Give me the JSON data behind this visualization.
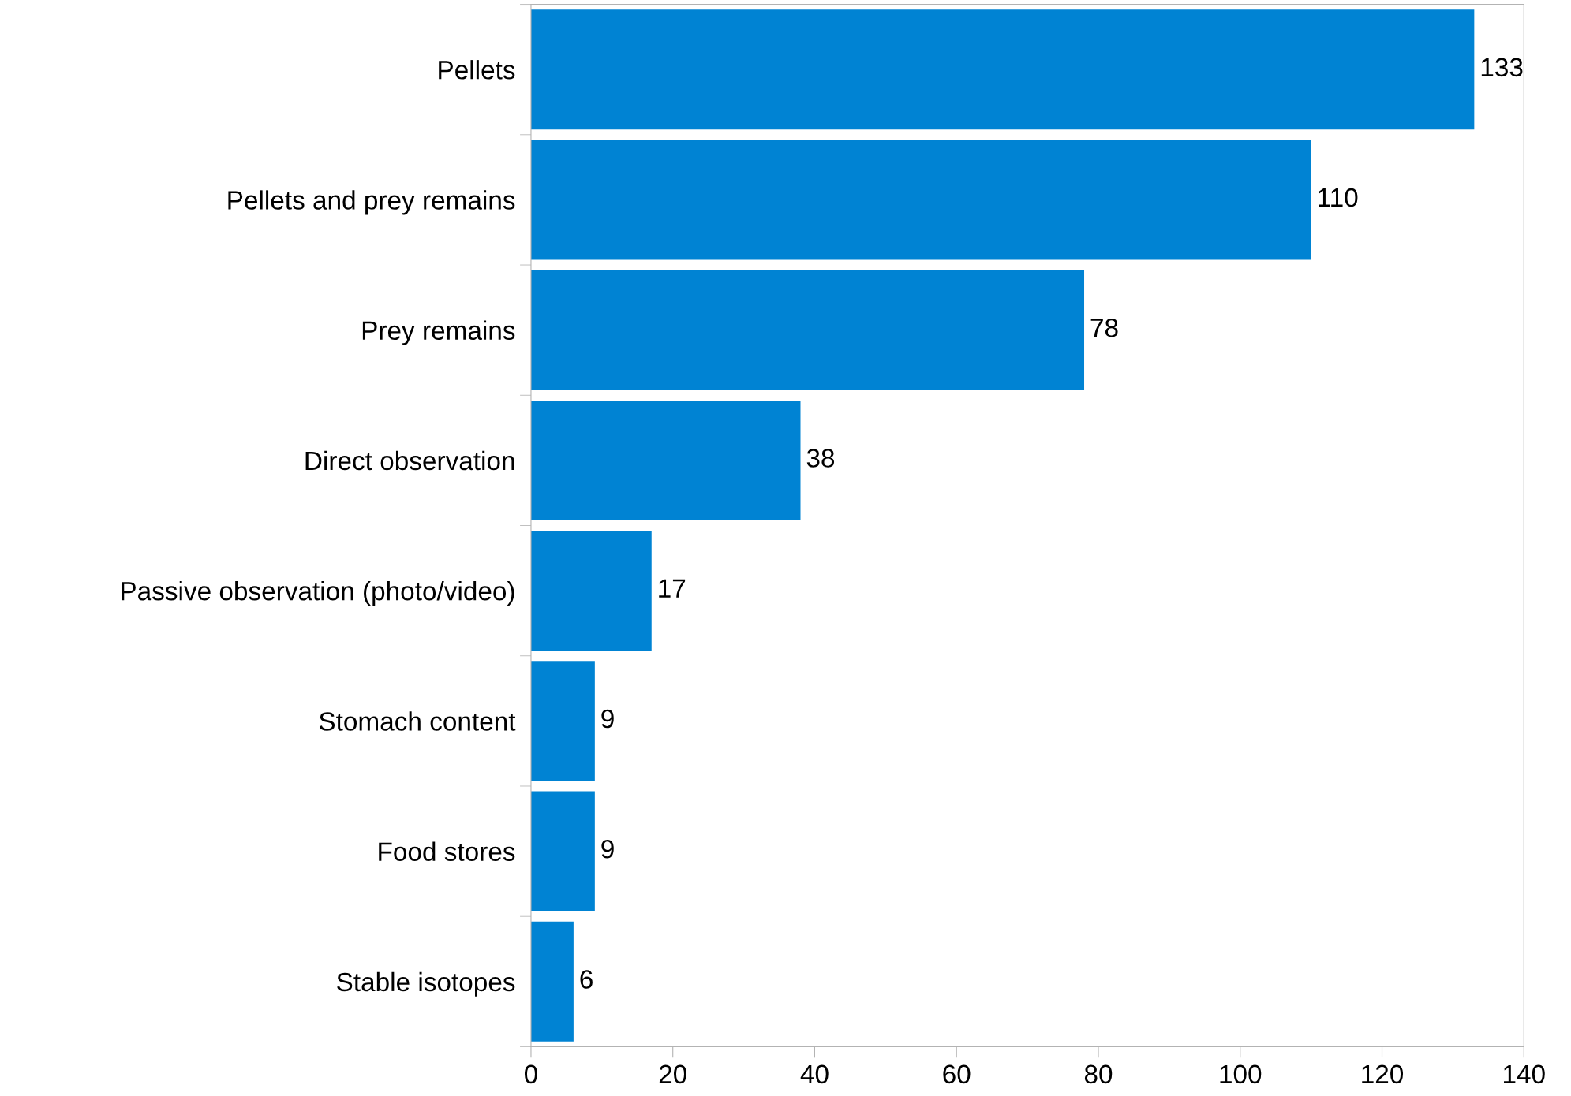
{
  "chart_data": {
    "type": "bar",
    "orientation": "horizontal",
    "categories": [
      "Pellets",
      "Pellets and prey remains",
      "Prey remains",
      "Direct observation",
      "Passive observation (photo/video)",
      "Stomach content",
      "Food stores",
      "Stable isotopes"
    ],
    "values": [
      133,
      110,
      78,
      38,
      17,
      9,
      9,
      6
    ],
    "color": "#0083d3",
    "xlim": [
      0,
      140
    ],
    "xticks": [
      0,
      20,
      40,
      60,
      80,
      100,
      120,
      140
    ],
    "data_labels": true,
    "grid": false,
    "legend": false
  }
}
